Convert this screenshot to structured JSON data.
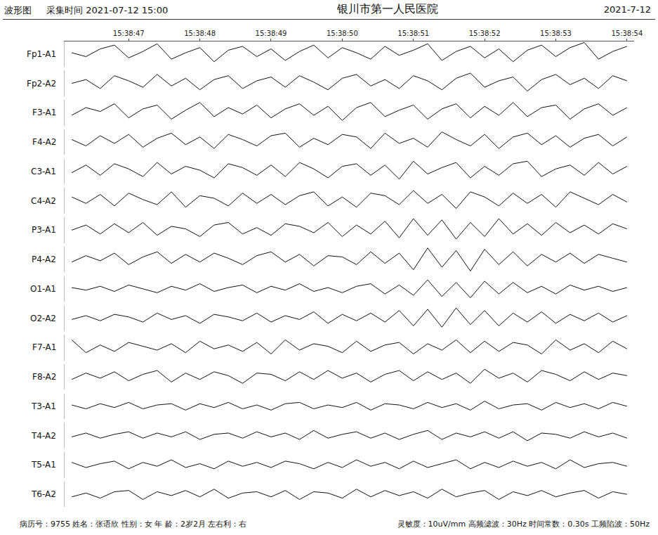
{
  "header": {
    "left": "波形图",
    "time": "采集时间 2021-07-12 15:00",
    "title": "银川市第一人民医院",
    "date": "2021-7-12"
  },
  "chart_data": {
    "type": "line",
    "x": [
      46.2,
      46.4,
      46.6,
      46.8,
      47.0,
      47.2,
      47.4,
      47.6,
      47.8,
      48.0,
      48.2,
      48.4,
      48.6,
      48.8,
      49.0,
      49.2,
      49.4,
      49.6,
      49.8,
      50.0,
      50.2,
      50.4,
      50.6,
      50.8,
      51.0,
      51.2,
      51.4,
      51.6,
      51.8,
      52.0,
      52.2,
      52.4,
      52.6,
      52.8,
      53.0,
      53.2,
      53.4,
      53.6,
      53.8,
      54.0
    ],
    "xlim": [
      46.1,
      54.1
    ],
    "xticks": [
      {
        "value": 47,
        "label": "15:38:47"
      },
      {
        "value": 48,
        "label": "15:38:48"
      },
      {
        "value": 49,
        "label": "15:38:49"
      },
      {
        "value": 50,
        "label": "15:38:50"
      },
      {
        "value": 51,
        "label": "15:38:51"
      },
      {
        "value": 52,
        "label": "15:38:52"
      },
      {
        "value": 53,
        "label": "15:38:53"
      },
      {
        "value": 54,
        "label": "15:38:54"
      }
    ],
    "ylim": [
      -50,
      50
    ],
    "tick_labels": "x",
    "grid": false,
    "color": "#111111",
    "series": [
      {
        "name": "Fp1-A1",
        "values": [
          5,
          -10,
          20,
          35,
          -15,
          10,
          40,
          -20,
          5,
          25,
          -30,
          15,
          30,
          -10,
          20,
          -25,
          10,
          35,
          -15,
          25,
          5,
          -20,
          30,
          -5,
          15,
          40,
          -25,
          10,
          30,
          -15,
          20,
          -30,
          15,
          35,
          -10,
          25,
          45,
          -20,
          10,
          30
        ]
      },
      {
        "name": "Fp2-A2",
        "values": [
          0,
          15,
          -20,
          30,
          10,
          -15,
          35,
          -10,
          20,
          -25,
          15,
          30,
          -20,
          10,
          25,
          -15,
          30,
          5,
          -25,
          20,
          35,
          -10,
          15,
          -20,
          30,
          10,
          -25,
          20,
          40,
          -15,
          10,
          25,
          -30,
          15,
          35,
          -5,
          20,
          -20,
          30,
          10
        ]
      },
      {
        "name": "F3-A1",
        "values": [
          -10,
          20,
          5,
          35,
          -20,
          15,
          30,
          -25,
          10,
          40,
          -15,
          20,
          -5,
          30,
          -20,
          15,
          35,
          -10,
          25,
          -30,
          20,
          40,
          -15,
          10,
          30,
          -25,
          15,
          35,
          -20,
          25,
          -10,
          40,
          -15,
          20,
          30,
          -25,
          15,
          35,
          -10,
          20
        ]
      },
      {
        "name": "F4-A2",
        "values": [
          10,
          -15,
          25,
          -5,
          30,
          -20,
          15,
          35,
          -10,
          20,
          -25,
          30,
          10,
          -15,
          25,
          35,
          -20,
          15,
          -10,
          30,
          20,
          -25,
          35,
          -5,
          15,
          -20,
          40,
          10,
          -15,
          30,
          -25,
          20,
          35,
          -10,
          25,
          -20,
          15,
          30,
          -15,
          20
        ]
      },
      {
        "name": "C3-A1",
        "values": [
          -5,
          25,
          -15,
          30,
          10,
          -20,
          35,
          -10,
          20,
          5,
          -25,
          30,
          15,
          -15,
          25,
          -20,
          35,
          10,
          -25,
          20,
          30,
          -15,
          25,
          -30,
          40,
          -10,
          15,
          35,
          -25,
          20,
          -15,
          30,
          40,
          -20,
          10,
          25,
          -15,
          35,
          -10,
          20
        ]
      },
      {
        "name": "C4-A2",
        "values": [
          15,
          -10,
          25,
          -20,
          30,
          5,
          -15,
          35,
          -25,
          20,
          10,
          -20,
          30,
          -10,
          25,
          -15,
          20,
          35,
          -20,
          15,
          -25,
          30,
          20,
          -15,
          40,
          -10,
          25,
          -30,
          35,
          15,
          -20,
          30,
          -10,
          25,
          -25,
          35,
          10,
          -15,
          25,
          -5
        ]
      },
      {
        "name": "P3-A1",
        "values": [
          0,
          20,
          -15,
          25,
          -10,
          30,
          -20,
          15,
          5,
          -25,
          20,
          30,
          -15,
          10,
          -20,
          25,
          15,
          -10,
          30,
          -25,
          20,
          -15,
          35,
          -30,
          45,
          -20,
          40,
          -35,
          30,
          -25,
          45,
          -15,
          25,
          -20,
          30,
          -10,
          20,
          -15,
          25,
          5
        ]
      },
      {
        "name": "P4-A2",
        "values": [
          -10,
          15,
          -5,
          25,
          -20,
          10,
          30,
          -15,
          20,
          -10,
          25,
          5,
          -20,
          15,
          30,
          -10,
          20,
          -25,
          15,
          10,
          -20,
          30,
          -15,
          25,
          -40,
          45,
          -30,
          35,
          -45,
          40,
          -20,
          30,
          -25,
          20,
          -10,
          25,
          -15,
          20,
          5,
          -10
        ]
      },
      {
        "name": "O1-A1",
        "values": [
          5,
          -5,
          10,
          -10,
          15,
          0,
          -15,
          10,
          -5,
          20,
          -10,
          5,
          15,
          -15,
          10,
          -5,
          20,
          -10,
          5,
          -15,
          10,
          20,
          -20,
          15,
          -25,
          35,
          -30,
          25,
          -35,
          30,
          -20,
          25,
          -15,
          10,
          -20,
          15,
          -5,
          10,
          -10,
          5
        ]
      },
      {
        "name": "O2-A2",
        "values": [
          -5,
          10,
          -10,
          15,
          5,
          -15,
          20,
          -5,
          10,
          -20,
          15,
          5,
          -10,
          20,
          -15,
          10,
          -5,
          25,
          -20,
          15,
          -10,
          20,
          -15,
          30,
          -30,
          35,
          -35,
          40,
          -25,
          30,
          -30,
          20,
          -15,
          25,
          -20,
          15,
          -10,
          20,
          -15,
          10
        ]
      },
      {
        "name": "F7-A1",
        "values": [
          30,
          -20,
          10,
          -15,
          20,
          5,
          -10,
          15,
          -20,
          25,
          -5,
          10,
          -15,
          20,
          -25,
          30,
          -10,
          15,
          5,
          -20,
          25,
          -15,
          10,
          20,
          -25,
          15,
          -10,
          30,
          -20,
          25,
          -15,
          20,
          10,
          -25,
          30,
          -10,
          15,
          -20,
          25,
          -5
        ]
      },
      {
        "name": "F8-A2",
        "values": [
          -10,
          15,
          -5,
          20,
          -15,
          10,
          25,
          -20,
          15,
          -10,
          20,
          5,
          -25,
          15,
          10,
          -15,
          20,
          -10,
          25,
          -5,
          15,
          -20,
          10,
          25,
          -15,
          20,
          -10,
          15,
          -25,
          30,
          -5,
          15,
          -20,
          25,
          10,
          -15,
          20,
          -10,
          15,
          5
        ]
      },
      {
        "name": "T3-A1",
        "values": [
          5,
          -10,
          10,
          -5,
          15,
          -10,
          5,
          10,
          -15,
          10,
          -5,
          15,
          -10,
          5,
          -15,
          10,
          15,
          -10,
          5,
          -5,
          15,
          -15,
          10,
          5,
          -10,
          15,
          -5,
          10,
          -15,
          20,
          -10,
          5,
          10,
          -15,
          15,
          -5,
          10,
          -10,
          15,
          0
        ]
      },
      {
        "name": "T4-A2",
        "values": [
          -5,
          10,
          -10,
          5,
          15,
          -10,
          10,
          -5,
          15,
          -15,
          5,
          10,
          -10,
          15,
          -5,
          10,
          -15,
          20,
          -10,
          5,
          15,
          -10,
          10,
          -15,
          5,
          20,
          -15,
          10,
          -5,
          15,
          -10,
          15,
          -20,
          10,
          5,
          -10,
          15,
          -5,
          10,
          -10
        ]
      },
      {
        "name": "T5-A1",
        "values": [
          10,
          -10,
          5,
          15,
          -15,
          10,
          -5,
          20,
          -10,
          5,
          -15,
          15,
          -5,
          10,
          -10,
          15,
          5,
          -15,
          10,
          -10,
          20,
          -5,
          10,
          -15,
          15,
          -10,
          5,
          20,
          -15,
          10,
          -10,
          15,
          -5,
          10,
          -15,
          20,
          -10,
          5,
          10,
          -5
        ]
      },
      {
        "name": "T6-A2",
        "values": [
          -10,
          5,
          -15,
          10,
          15,
          -20,
          10,
          -5,
          15,
          -10,
          20,
          -15,
          5,
          10,
          -10,
          15,
          -20,
          10,
          5,
          -15,
          20,
          -10,
          15,
          -5,
          10,
          -15,
          20,
          -10,
          5,
          15,
          -20,
          10,
          -5,
          15,
          -10,
          5,
          15,
          -15,
          10,
          0
        ]
      }
    ]
  },
  "footer": {
    "patient": "病历号：9755 姓名：张语欣 性别：女 年 龄：2岁2月 左右利：右",
    "settings": "灵敏度：10uV/mm 高频滤波：30Hz 时间常数：0.30s 工频陷波：50Hz"
  }
}
